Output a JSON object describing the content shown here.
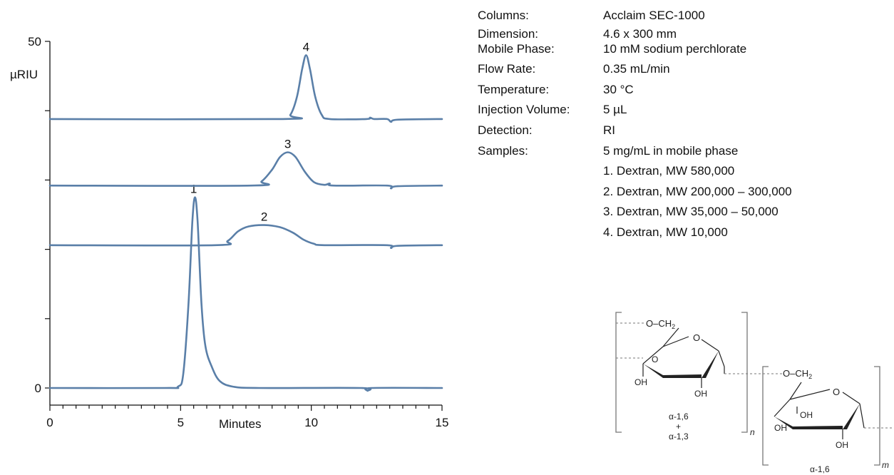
{
  "chart_data": {
    "type": "line",
    "xlabel": "Minutes",
    "ylabel": "µRIU",
    "xlim": [
      0,
      15
    ],
    "ylim": [
      0,
      50
    ],
    "x_ticks": [
      "0",
      "5",
      "10",
      "15"
    ],
    "y_ticks": [
      "0",
      "50"
    ],
    "series": [
      {
        "name": "1",
        "peak_time": 5.5,
        "points": [
          [
            0,
            0
          ],
          [
            4.4,
            0
          ],
          [
            4.9,
            0.2
          ],
          [
            5.1,
            2
          ],
          [
            5.3,
            12
          ],
          [
            5.45,
            24
          ],
          [
            5.55,
            27.5
          ],
          [
            5.65,
            24
          ],
          [
            5.8,
            12
          ],
          [
            5.95,
            6
          ],
          [
            6.2,
            3
          ],
          [
            6.5,
            1
          ],
          [
            7,
            0.2
          ],
          [
            8,
            0
          ],
          [
            11.9,
            0
          ],
          [
            12.15,
            -0.4
          ],
          [
            12.3,
            0
          ],
          [
            15,
            0
          ]
        ]
      },
      {
        "name": "2",
        "peak_time": 8.2,
        "points": [
          [
            0,
            20.6
          ],
          [
            6.3,
            20.6
          ],
          [
            6.8,
            21.2
          ],
          [
            7.2,
            22.6
          ],
          [
            7.6,
            23.3
          ],
          [
            8.2,
            23.5
          ],
          [
            8.8,
            23.2
          ],
          [
            9.3,
            22.4
          ],
          [
            9.7,
            21.4
          ],
          [
            10.1,
            20.8
          ],
          [
            10.5,
            20.6
          ],
          [
            12.9,
            20.6
          ],
          [
            13.05,
            20.2
          ],
          [
            13.3,
            20.5
          ],
          [
            15,
            20.6
          ]
        ]
      },
      {
        "name": "3",
        "peak_time": 9.1,
        "points": [
          [
            0,
            29.2
          ],
          [
            7.7,
            29.2
          ],
          [
            8.1,
            29.8
          ],
          [
            8.5,
            31.5
          ],
          [
            8.8,
            33.3
          ],
          [
            9.1,
            34
          ],
          [
            9.4,
            33.3
          ],
          [
            9.75,
            31.2
          ],
          [
            10.1,
            29.7
          ],
          [
            10.5,
            29.3
          ],
          [
            10.7,
            29.5
          ],
          [
            10.85,
            29.2
          ],
          [
            12.9,
            29.2
          ],
          [
            13.05,
            28.8
          ],
          [
            13.3,
            29.1
          ],
          [
            15,
            29.2
          ]
        ]
      },
      {
        "name": "4",
        "peak_time": 9.8,
        "points": [
          [
            0,
            38.8
          ],
          [
            8.9,
            38.8
          ],
          [
            9.2,
            39.4
          ],
          [
            9.45,
            42
          ],
          [
            9.65,
            46
          ],
          [
            9.8,
            48
          ],
          [
            9.95,
            46
          ],
          [
            10.15,
            42
          ],
          [
            10.4,
            39.4
          ],
          [
            10.7,
            38.8
          ],
          [
            12.1,
            38.8
          ],
          [
            12.25,
            39
          ],
          [
            12.4,
            38.8
          ],
          [
            12.9,
            38.8
          ],
          [
            13.05,
            38.4
          ],
          [
            13.3,
            38.7
          ],
          [
            15,
            38.8
          ]
        ]
      }
    ]
  },
  "conditions": [
    {
      "key": "Columns:",
      "value": "Acclaim SEC-1000"
    },
    {
      "key": "Dimension:",
      "value": "4.6 x 300 mm"
    },
    {
      "key": "Mobile Phase:",
      "value": "10 mM sodium perchlorate"
    },
    {
      "key": "Flow Rate:",
      "value": "0.35 mL/min"
    },
    {
      "key": "Temperature:",
      "value": "30 °C"
    },
    {
      "key": "Injection Volume:",
      "value": "5 µL"
    },
    {
      "key": "Detection:",
      "value": "RI"
    },
    {
      "key": "Samples:",
      "value": "5 mg/mL in mobile phase"
    }
  ],
  "samples": [
    "1. Dextran, MW 580,000",
    "2. Dextran, MW 200,000 – 300,000",
    "3. Dextran, MW 35,000 – 50,000",
    "4. Dextran, MW 10,000"
  ],
  "structure": {
    "o_ch2": "O–CH",
    "sub2": "2",
    "o": "O",
    "oh": "OH",
    "n": "n",
    "m": "m",
    "label_left_1": "α-1,6",
    "plus": "+",
    "label_left_2": "α-1,3",
    "label_right": "α-1,6"
  }
}
